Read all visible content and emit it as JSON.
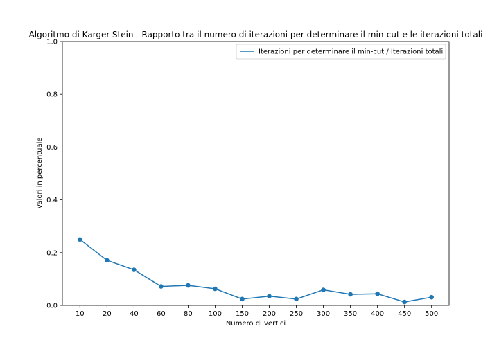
{
  "chart_data": {
    "type": "line",
    "title": "Algoritmo di Karger-Stein - Rapporto tra il numero di iterazioni per determinare il min-cut e le iterazioni totali",
    "xlabel": "Numero di vertici",
    "ylabel": "Valori in percentuale",
    "categories": [
      "10",
      "20",
      "40",
      "60",
      "80",
      "100",
      "150",
      "200",
      "250",
      "300",
      "350",
      "400",
      "450",
      "500"
    ],
    "series": [
      {
        "name": "Iterazioni per determinare il min-cut / Iterazioni totali",
        "values": [
          0.25,
          0.171,
          0.135,
          0.072,
          0.076,
          0.063,
          0.024,
          0.035,
          0.024,
          0.059,
          0.042,
          0.044,
          0.013,
          0.031
        ],
        "color": "#1f77b4"
      }
    ],
    "ylim": [
      0,
      1
    ],
    "yticks": [
      "0.0",
      "0.2",
      "0.4",
      "0.6",
      "0.8",
      "1.0"
    ],
    "grid": false,
    "legend_position": "top-right",
    "markers": true
  }
}
